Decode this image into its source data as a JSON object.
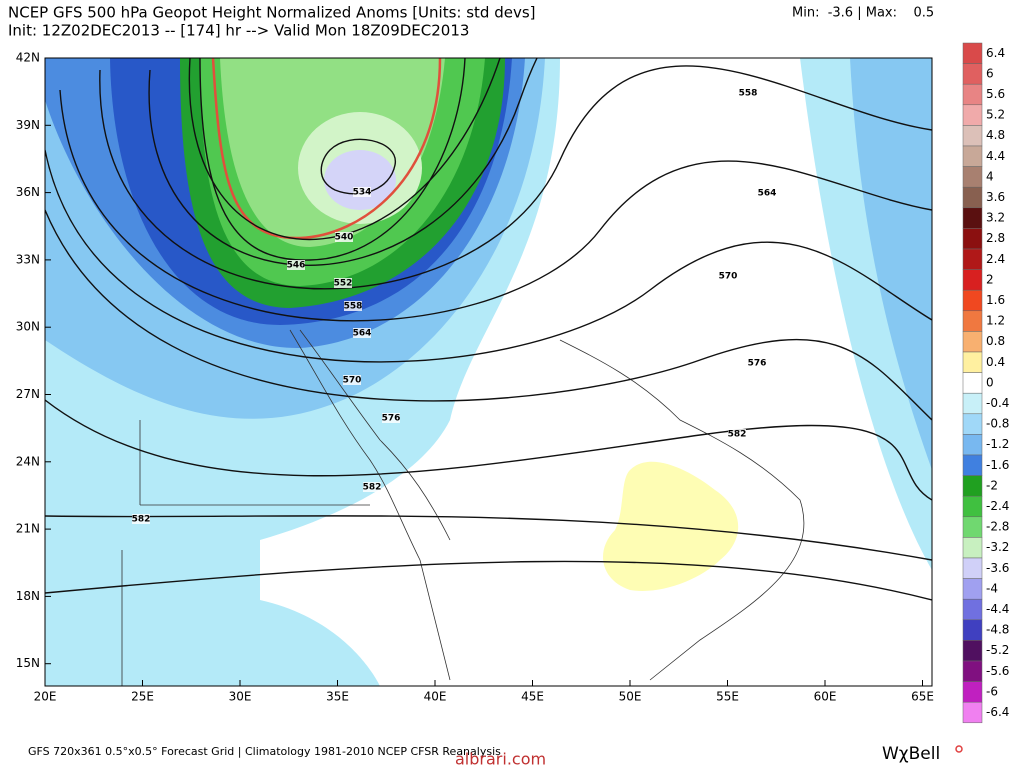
{
  "header": {
    "title": "NCEP GFS 500 hPa Geopot Height Normalized Anoms [Units: std devs]",
    "init": "Init: 12Z02DEC2013 -- [174] hr --> Valid Mon 18Z09DEC2013",
    "minmax": "Min:  -3.6 | Max:    0.5"
  },
  "map": {
    "lat_labels": [
      "42N",
      "39N",
      "36N",
      "33N",
      "30N",
      "27N",
      "24N",
      "21N",
      "18N",
      "15N"
    ],
    "lon_labels": [
      "20E",
      "25E",
      "30E",
      "35E",
      "40E",
      "45E",
      "50E",
      "55E",
      "60E",
      "65E"
    ],
    "contour_labels": [
      "558",
      "564",
      "570",
      "576",
      "582",
      "534",
      "540",
      "546",
      "552",
      "558",
      "564",
      "570",
      "576",
      "582",
      "582"
    ]
  },
  "colorbar": {
    "labels": [
      "6.4",
      "6",
      "5.6",
      "5.2",
      "4.8",
      "4.4",
      "4",
      "3.6",
      "3.2",
      "2.8",
      "2.4",
      "2",
      "1.6",
      "1.2",
      "0.8",
      "0.4",
      "0",
      "-0.4",
      "-0.8",
      "-1.2",
      "-1.6",
      "-2",
      "-2.4",
      "-2.8",
      "-3.2",
      "-3.6",
      "-4",
      "-4.4",
      "-4.8",
      "-5.2",
      "-5.6",
      "-6",
      "-6.4"
    ],
    "colors": [
      "#d94a4a",
      "#e06060",
      "#e88484",
      "#f0aaaa",
      "#dcc0b8",
      "#c8a898",
      "#a88070",
      "#886050",
      "#5a1010",
      "#8b1010",
      "#b01818",
      "#d82020",
      "#f04820",
      "#f07840",
      "#f8b070",
      "#fff0a0",
      "#ffffff",
      "#c8f0f8",
      "#a0d8f8",
      "#78b8f0",
      "#4080e0",
      "#20a020",
      "#40c040",
      "#70d870",
      "#c8f0c0",
      "#d0d0f8",
      "#a0a0f0",
      "#7070e0",
      "#4040c0",
      "#501060",
      "#801080",
      "#c020c0",
      "#f080f0"
    ]
  },
  "footer": {
    "text": "GFS 720x361 0.5°x0.5° Forecast Grid | Climatology 1981-2010 NCEP CFSR Reanalysis",
    "logo": "WχBell",
    "watermark": "albrari.com"
  }
}
